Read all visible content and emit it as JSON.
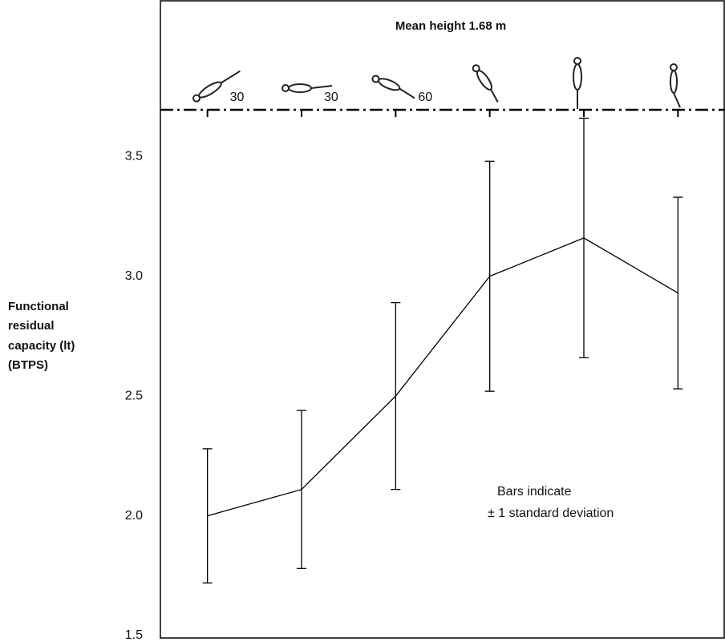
{
  "chart_data": {
    "type": "line",
    "title": "Mean height 1.68 m",
    "y_label": [
      "Functional",
      "residual",
      "capacity (lt)",
      "(BTPS)"
    ],
    "annotation": [
      "Bars indicate",
      "± 1 standard deviation"
    ],
    "categories": [
      "30",
      "30",
      "60",
      null,
      null,
      null
    ],
    "values": [
      2.0,
      2.11,
      2.5,
      3.0,
      3.16,
      2.93
    ],
    "errors": [
      0.28,
      0.33,
      0.39,
      0.48,
      0.5,
      0.4
    ],
    "color": "#000000",
    "ylim": [
      1.5,
      4.15
    ],
    "yticks": [
      1.5,
      {
        "value": 2,
        "label": "2.0"
      },
      2.5,
      {
        "value": 3,
        "label": "3.0"
      },
      3.5
    ]
  }
}
